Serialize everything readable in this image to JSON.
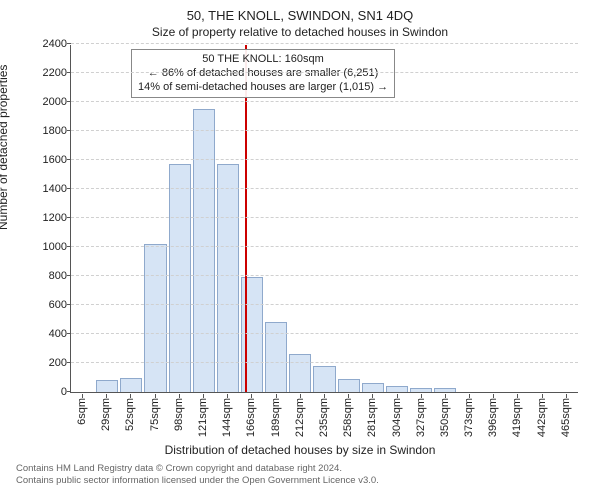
{
  "title_address": "50, THE KNOLL, SWINDON, SN1 4DQ",
  "subtitle": "Size of property relative to detached houses in Swindon",
  "xlabel": "Distribution of detached houses by size in Swindon",
  "ylabel": "Number of detached properties",
  "chart": {
    "type": "histogram",
    "background_color": "#ffffff",
    "bar_fill": "#d6e4f5",
    "bar_stroke": "#8fa9cc",
    "grid_color": "#d0d0d0",
    "axis_color": "#555555",
    "ref_line_color": "#cc0000",
    "ref_line_x": 160,
    "xlim": [
      0,
      475
    ],
    "ylim": [
      0,
      2400
    ],
    "ytick_step": 200,
    "categories": [
      "6sqm",
      "29sqm",
      "52sqm",
      "75sqm",
      "98sqm",
      "121sqm",
      "144sqm",
      "166sqm",
      "189sqm",
      "212sqm",
      "235sqm",
      "258sqm",
      "281sqm",
      "304sqm",
      "327sqm",
      "350sqm",
      "373sqm",
      "396sqm",
      "419sqm",
      "442sqm",
      "465sqm"
    ],
    "values": [
      0,
      80,
      100,
      1020,
      1570,
      1950,
      1570,
      790,
      480,
      260,
      180,
      90,
      60,
      40,
      30,
      30,
      0,
      0,
      0,
      0,
      0
    ],
    "bar_width": 0.92,
    "title_fontsize": 13,
    "label_fontsize": 12,
    "tick_fontsize": 11,
    "annot_fontsize": 11
  },
  "annotation": {
    "line1": "50 THE KNOLL: 160sqm",
    "line2": "← 86% of detached houses are smaller (6,251)",
    "line3": "14% of semi-detached houses are larger (1,015) →",
    "border_color": "#888888"
  },
  "footer": {
    "line1": "Contains HM Land Registry data © Crown copyright and database right 2024.",
    "line2": "Contains public sector information licensed under the Open Government Licence v3.0."
  }
}
